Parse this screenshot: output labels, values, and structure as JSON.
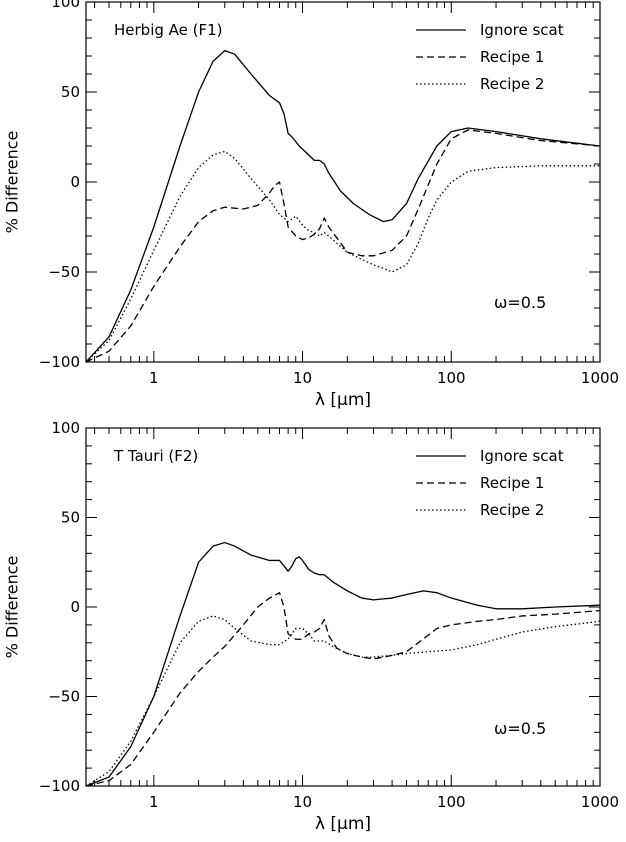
{
  "chart_data": [
    {
      "type": "line",
      "annotation": "Herbig Ae (F1)",
      "omega_label": "ω=0.5",
      "xlabel": "λ [μm]",
      "ylabel": "% Difference",
      "xscale": "log",
      "xlim": [
        0.35,
        1000
      ],
      "ylim": [
        -100,
        100
      ],
      "xticks": [
        1,
        10,
        100,
        1000
      ],
      "xtick_labels": [
        "1",
        "10",
        "100",
        "1000"
      ],
      "yticks": [
        -100,
        -50,
        0,
        50,
        100
      ],
      "ytick_labels": [
        "−100",
        "−50",
        "0",
        "50",
        "100"
      ],
      "legend_position": "top-right",
      "series": [
        {
          "name": "Ignore scat",
          "style": "solid",
          "x": [
            0.35,
            0.5,
            0.7,
            1.0,
            1.5,
            2.0,
            2.5,
            3.0,
            3.5,
            4.5,
            6.0,
            7.0,
            7.5,
            8.0,
            8.5,
            9.5,
            11.0,
            12.0,
            13.0,
            14.0,
            15.0,
            18.0,
            22.0,
            28.0,
            35.0,
            40.0,
            50.0,
            60.0,
            80.0,
            100.0,
            130.0,
            200.0,
            400.0,
            1000.0
          ],
          "y": [
            -100,
            -86,
            -60,
            -25,
            20,
            50,
            67,
            73,
            71,
            60,
            48,
            44,
            38,
            27,
            25,
            20,
            15,
            12,
            12,
            10,
            5,
            -5,
            -12,
            -18,
            -22,
            -21,
            -12,
            2,
            20,
            28,
            30,
            28,
            24,
            20
          ]
        },
        {
          "name": "Recipe 1",
          "style": "dashed",
          "x": [
            0.35,
            0.5,
            0.7,
            1.0,
            1.5,
            2.0,
            2.5,
            3.0,
            4.0,
            5.0,
            6.0,
            6.5,
            7.0,
            7.5,
            8.0,
            9.0,
            10.0,
            11.0,
            12.0,
            13.0,
            14.0,
            15.0,
            17.0,
            20.0,
            25.0,
            30.0,
            40.0,
            50.0,
            60.0,
            80.0,
            100.0,
            130.0,
            200.0,
            400.0,
            1000.0
          ],
          "y": [
            -100,
            -94,
            -80,
            -58,
            -36,
            -22,
            -16,
            -14,
            -15,
            -13,
            -6,
            -2,
            0,
            -12,
            -25,
            -30,
            -32,
            -31,
            -29,
            -26,
            -20,
            -25,
            -31,
            -39,
            -41,
            -41,
            -38,
            -30,
            -15,
            10,
            24,
            29,
            27,
            23,
            20
          ]
        },
        {
          "name": "Recipe 2",
          "style": "dotted",
          "x": [
            0.35,
            0.5,
            0.7,
            1.0,
            1.5,
            2.0,
            2.5,
            3.0,
            3.5,
            4.5,
            6.0,
            7.0,
            8.0,
            9.0,
            10.0,
            11.0,
            12.0,
            13.0,
            14.0,
            15.0,
            17.0,
            20.0,
            25.0,
            30.0,
            35.0,
            40.0,
            50.0,
            60.0,
            70.0,
            80.0,
            100.0,
            130.0,
            200.0,
            400.0,
            1000.0
          ],
          "y": [
            -100,
            -88,
            -65,
            -38,
            -8,
            8,
            15,
            17,
            13,
            2,
            -10,
            -18,
            -22,
            -19,
            -24,
            -27,
            -28,
            -30,
            -28,
            -30,
            -34,
            -39,
            -43,
            -46,
            -48,
            -50,
            -46,
            -34,
            -20,
            -10,
            0,
            6,
            8,
            9,
            9
          ]
        }
      ]
    },
    {
      "type": "line",
      "annotation": "T Tauri (F2)",
      "omega_label": "ω=0.5",
      "xlabel": "λ [μm]",
      "ylabel": "% Difference",
      "xscale": "log",
      "xlim": [
        0.35,
        1000
      ],
      "ylim": [
        -100,
        100
      ],
      "xticks": [
        1,
        10,
        100,
        1000
      ],
      "xtick_labels": [
        "1",
        "10",
        "100",
        "1000"
      ],
      "yticks": [
        -100,
        -50,
        0,
        50,
        100
      ],
      "ytick_labels": [
        "−100",
        "−50",
        "0",
        "50",
        "100"
      ],
      "legend_position": "top-right",
      "series": [
        {
          "name": "Ignore scat",
          "style": "solid",
          "x": [
            0.35,
            0.5,
            0.7,
            1.0,
            1.5,
            2.0,
            2.5,
            3.0,
            3.5,
            4.5,
            6.0,
            7.0,
            7.5,
            8.0,
            8.5,
            9.0,
            9.5,
            10.0,
            11.0,
            12.0,
            13.0,
            14.0,
            16.0,
            20.0,
            25.0,
            30.0,
            40.0,
            50.0,
            65.0,
            80.0,
            100.0,
            150.0,
            200.0,
            300.0,
            500.0,
            1000.0
          ],
          "y": [
            -100,
            -95,
            -78,
            -50,
            -5,
            25,
            34,
            36,
            34,
            29,
            26,
            26,
            23,
            20,
            23,
            27,
            28,
            26,
            21,
            19,
            18,
            18,
            14,
            9,
            5,
            4,
            5,
            7,
            9,
            8,
            5,
            1,
            -1,
            -1,
            0,
            1
          ]
        },
        {
          "name": "Recipe 1",
          "style": "dashed",
          "x": [
            0.35,
            0.5,
            0.7,
            1.0,
            1.5,
            2.0,
            2.5,
            3.0,
            4.0,
            5.0,
            6.0,
            7.0,
            7.5,
            8.0,
            9.0,
            10.0,
            11.0,
            12.0,
            13.0,
            14.0,
            15.0,
            17.0,
            20.0,
            25.0,
            30.0,
            35.0,
            40.0,
            50.0,
            60.0,
            80.0,
            100.0,
            150.0,
            200.0,
            300.0,
            500.0,
            1000.0
          ],
          "y": [
            -100,
            -97,
            -88,
            -70,
            -48,
            -36,
            -28,
            -22,
            -10,
            0,
            5,
            8,
            0,
            -15,
            -18,
            -18,
            -15,
            -14,
            -12,
            -7,
            -16,
            -23,
            -26,
            -28,
            -29,
            -28,
            -27,
            -25,
            -20,
            -12,
            -10,
            -8,
            -7,
            -5,
            -4,
            -2
          ]
        },
        {
          "name": "Recipe 2",
          "style": "dotted",
          "x": [
            0.35,
            0.5,
            0.7,
            1.0,
            1.5,
            2.0,
            2.5,
            3.0,
            3.5,
            4.5,
            6.0,
            7.0,
            8.0,
            9.0,
            10.0,
            11.0,
            12.0,
            14.0,
            16.0,
            20.0,
            25.0,
            30.0,
            40.0,
            50.0,
            70.0,
            100.0,
            150.0,
            200.0,
            300.0,
            500.0,
            1000.0
          ],
          "y": [
            -100,
            -92,
            -75,
            -50,
            -20,
            -8,
            -5,
            -7,
            -12,
            -19,
            -21,
            -21,
            -18,
            -12,
            -12,
            -15,
            -19,
            -19,
            -22,
            -26,
            -28,
            -28,
            -27,
            -26,
            -25,
            -24,
            -21,
            -18,
            -14,
            -11,
            -8
          ]
        }
      ]
    }
  ]
}
